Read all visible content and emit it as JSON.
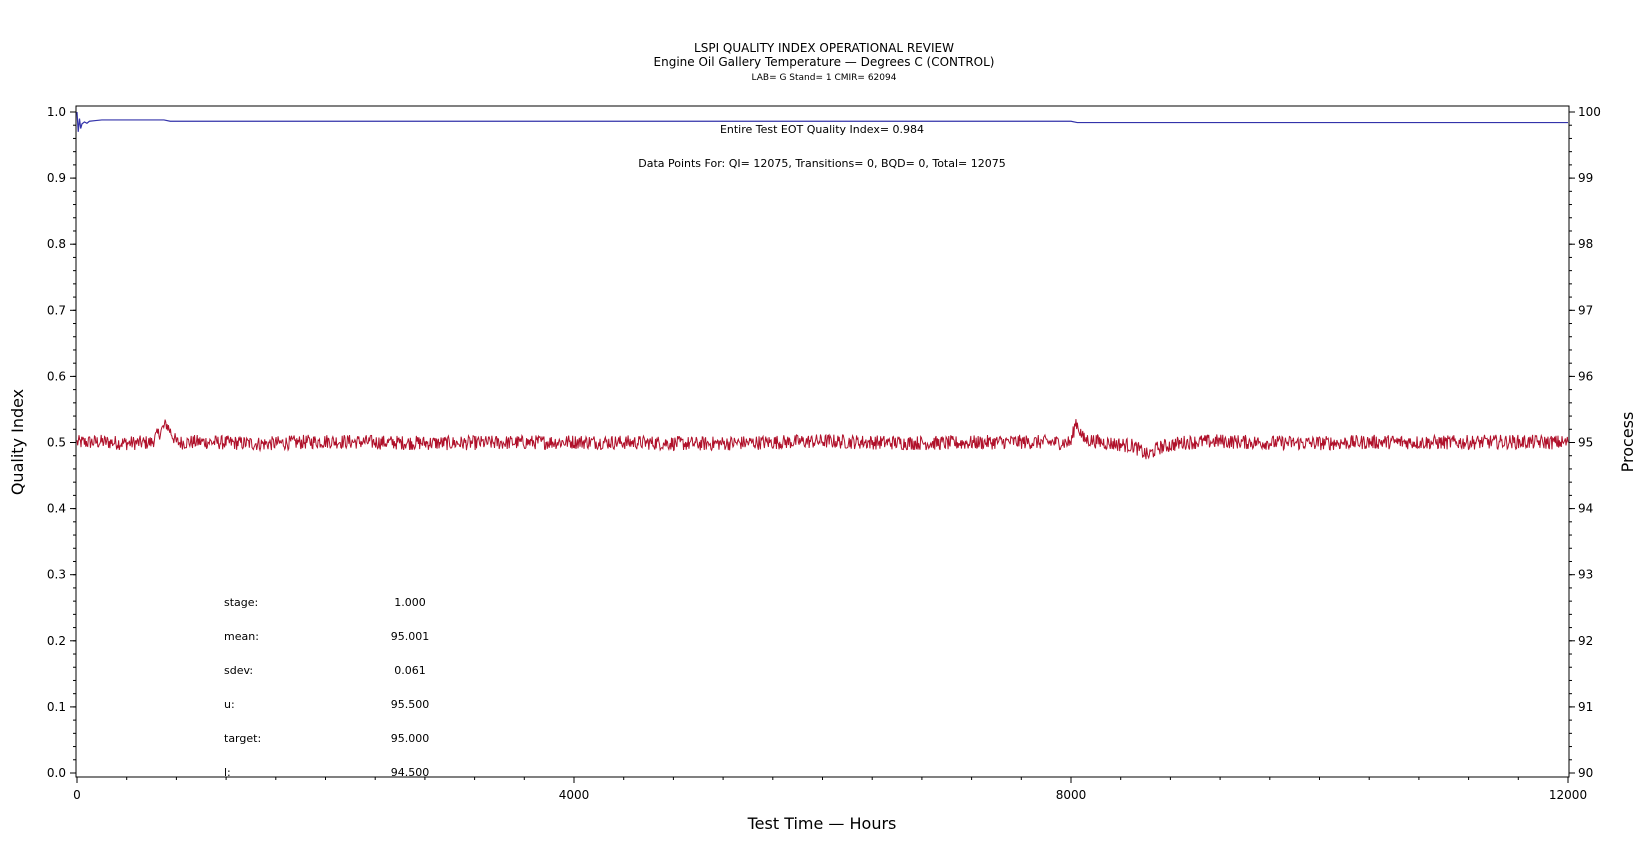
{
  "chart_data": {
    "type": "line",
    "title": "LSPI QUALITY INDEX OPERATIONAL REVIEW",
    "subtitle": "Engine Oil Gallery Temperature — Degrees C (CONTROL)",
    "subsubtitle": "LAB= G Stand= 1 CMIR= 62094",
    "xlabel": "Test Time — Hours",
    "ylabel_left": "Quality Index",
    "ylabel_right": "Process",
    "xlim": [
      0,
      12000
    ],
    "ylim_left": [
      0.0,
      1.0
    ],
    "ylim_right": [
      90,
      100
    ],
    "x_ticks": [
      "0",
      "4000",
      "8000",
      "12000"
    ],
    "y_ticks_left": [
      "0.0",
      "0.1",
      "0.2",
      "0.3",
      "0.4",
      "0.5",
      "0.6",
      "0.7",
      "0.8",
      "0.9",
      "1.0"
    ],
    "y_ticks_right": [
      "90",
      "91",
      "92",
      "93",
      "94",
      "95",
      "96",
      "97",
      "98",
      "99",
      "100"
    ],
    "series": [
      {
        "axis": "left",
        "color": "#3333aa",
        "x": [
          0,
          10,
          20,
          30,
          40,
          60,
          80,
          100,
          150,
          200,
          300,
          500,
          700,
          750,
          2000,
          4000,
          6000,
          8000,
          8050,
          10000,
          12000
        ],
        "y": [
          1.0,
          0.97,
          0.99,
          0.975,
          0.982,
          0.985,
          0.983,
          0.986,
          0.987,
          0.988,
          0.988,
          0.988,
          0.988,
          0.986,
          0.986,
          0.986,
          0.986,
          0.986,
          0.984,
          0.984,
          0.984
        ]
      },
      {
        "axis": "right",
        "color": "#b0102a",
        "x": [
          0,
          200,
          400,
          600,
          720,
          800,
          1000,
          1500,
          2000,
          2500,
          3000,
          3500,
          4000,
          4500,
          5000,
          5500,
          6000,
          6500,
          7000,
          7500,
          8000,
          8040,
          8100,
          8300,
          8500,
          8620,
          8700,
          8900,
          9200,
          9500,
          10000,
          10500,
          11000,
          11500,
          12000
        ],
        "y": [
          95.0,
          95.01,
          94.99,
          95.0,
          95.28,
          95.0,
          95.01,
          94.98,
          95.02,
          95.0,
          94.99,
          95.0,
          95.01,
          95.0,
          94.98,
          95.0,
          95.02,
          95.0,
          94.99,
          95.01,
          95.0,
          95.32,
          95.05,
          94.99,
          94.95,
          94.8,
          94.92,
          95.0,
          95.02,
          95.0,
          94.99,
          95.01,
          95.0,
          95.01,
          95.0
        ]
      }
    ],
    "annotations": {
      "qi_text": "Entire Test EOT Quality Index=   0.984",
      "points_text": "Data Points For: QI=  12075, Transitions=      0, BQD=      0, Total=  12075"
    },
    "stats": [
      {
        "label": "stage:",
        "value": "1.000"
      },
      {
        "label": "mean:",
        "value": "95.001"
      },
      {
        "label": "sdev:",
        "value": "0.061"
      },
      {
        "label": "u:",
        "value": "95.500"
      },
      {
        "label": "target:",
        "value": "95.000"
      },
      {
        "label": "l:",
        "value": "94.500"
      }
    ]
  }
}
